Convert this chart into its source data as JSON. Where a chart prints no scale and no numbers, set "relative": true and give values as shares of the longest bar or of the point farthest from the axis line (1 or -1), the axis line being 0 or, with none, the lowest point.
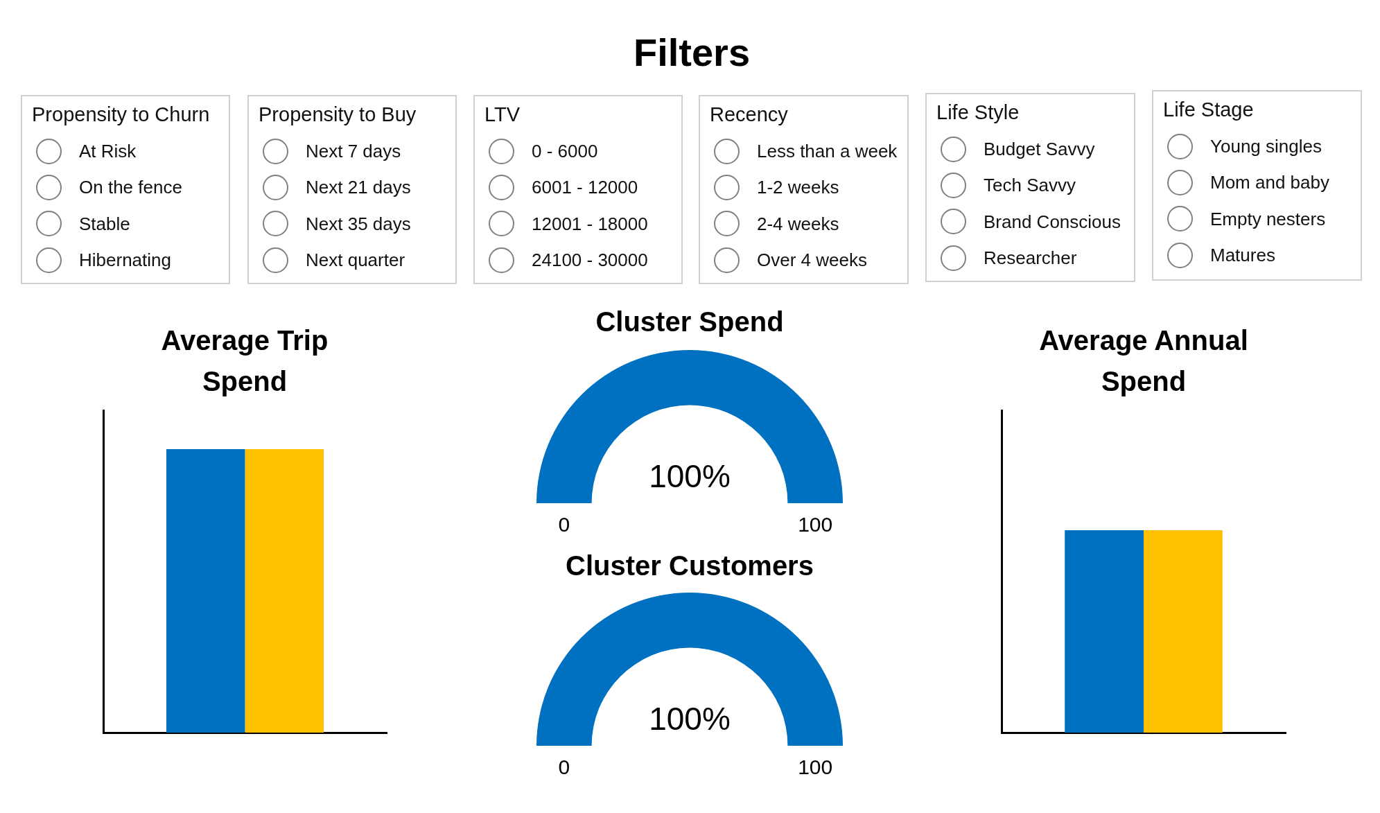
{
  "chart_data": [
    {
      "type": "other",
      "title": "Filters"
    },
    {
      "type": "other",
      "title": "Propensity to Churn",
      "annotations": [
        "At Risk",
        "On the fence",
        "Stable",
        "Hibernating"
      ]
    },
    {
      "type": "other",
      "title": "Propensity to Buy",
      "annotations": [
        "Next 7 days",
        "Next 21 days",
        "Next 35 days",
        "Next quarter"
      ]
    },
    {
      "type": "other",
      "title": "LTV",
      "annotations": [
        "0 - 6000",
        "6001 - 12000",
        "12001 - 18000",
        "24100 - 30000"
      ]
    },
    {
      "type": "other",
      "title": "Recency",
      "annotations": [
        "Less than a week",
        "1-2 weeks",
        "2-4 weeks",
        "Over 4 weeks"
      ]
    },
    {
      "type": "other",
      "title": "Life Style",
      "annotations": [
        "Budget Savvy",
        "Tech Savvy",
        "Brand Conscious",
        "Researcher"
      ]
    },
    {
      "type": "other",
      "title": "Life Stage",
      "annotations": [
        "Young singles",
        "Mom and baby",
        "Empty nesters",
        "Matures"
      ]
    },
    {
      "type": "bar",
      "title": "Average Trip Spend",
      "categories": [
        null
      ],
      "series": [
        {
          "color": "#0070c0",
          "values": [
            1
          ]
        },
        {
          "color": "#ffc000",
          "values": [
            1
          ]
        }
      ],
      "relative": true
    },
    {
      "type": "pie",
      "title": "Cluster Spend",
      "categories": [
        null
      ],
      "values": [
        100
      ],
      "colors": [
        "#0070c0"
      ],
      "value_labels": [
        "100%"
      ],
      "annotations": [
        "0",
        "100"
      ]
    },
    {
      "type": "pie",
      "title": "Cluster Customers",
      "categories": [
        null
      ],
      "values": [
        100
      ],
      "colors": [
        "#0070c0"
      ],
      "value_labels": [
        "100%"
      ],
      "annotations": [
        "0",
        "100"
      ]
    },
    {
      "type": "bar",
      "title": "Average Annual Spend",
      "categories": [
        null
      ],
      "series": [
        {
          "color": "#0070c0",
          "values": [
            1
          ]
        },
        {
          "color": "#ffc000",
          "values": [
            1
          ]
        }
      ],
      "relative": true
    }
  ]
}
